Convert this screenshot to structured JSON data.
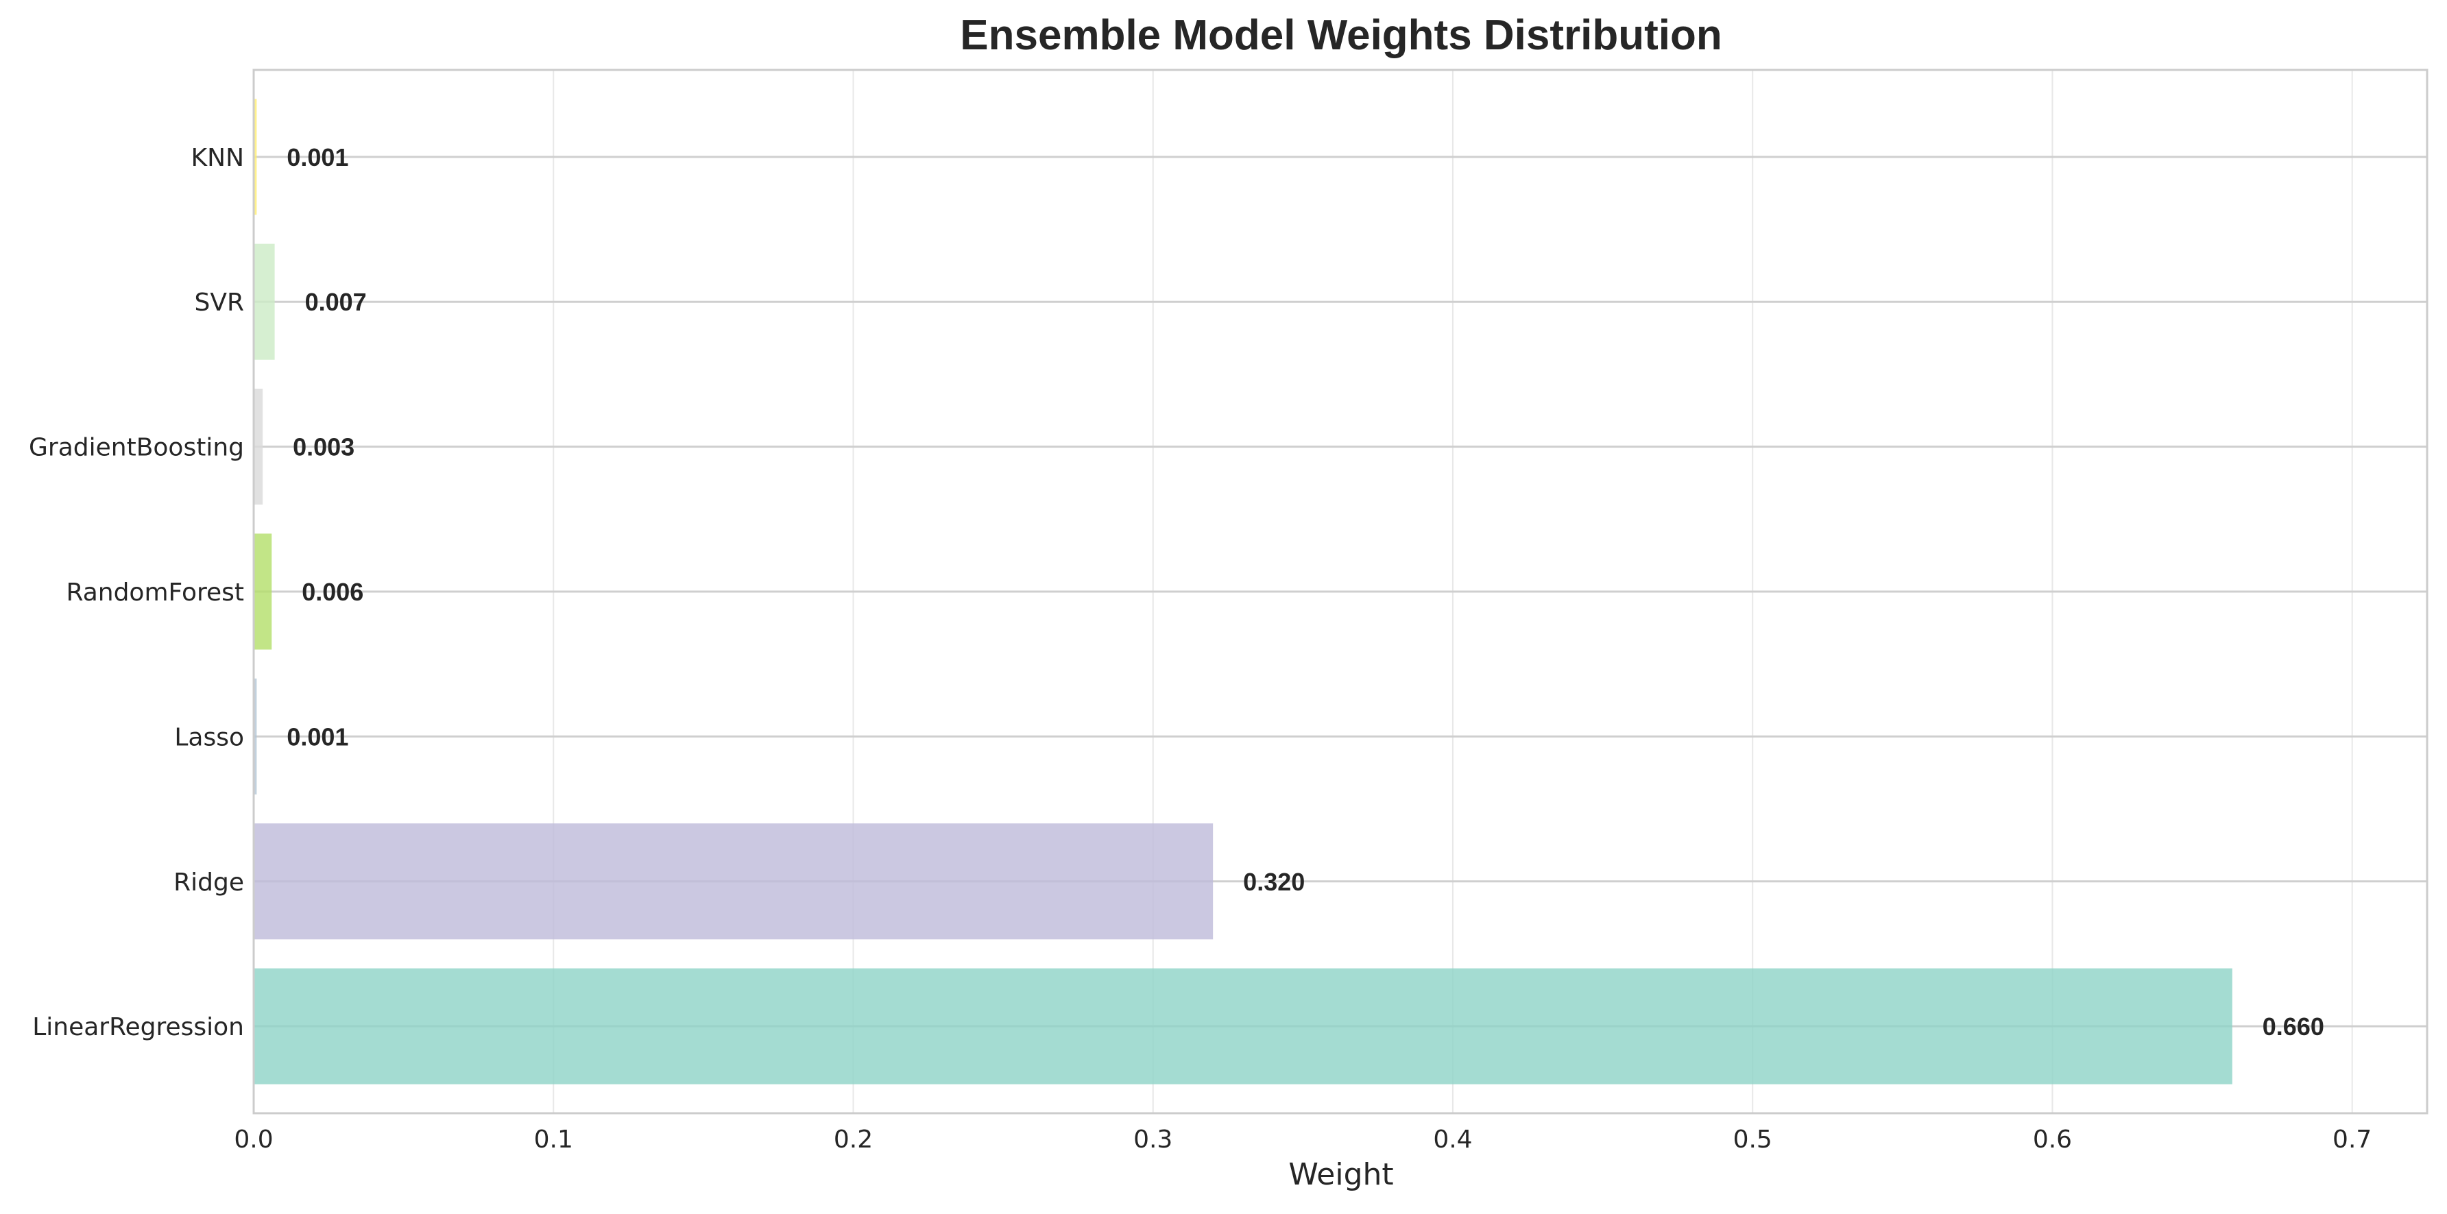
{
  "chart_data": {
    "type": "bar",
    "orientation": "horizontal",
    "title": "Ensemble Model Weights Distribution",
    "xlabel": "Weight",
    "ylabel": "",
    "xlim": [
      0,
      0.725
    ],
    "xticks": [
      "0.0",
      "0.1",
      "0.2",
      "0.3",
      "0.4",
      "0.5",
      "0.6",
      "0.7"
    ],
    "grid": true,
    "categories": [
      "LinearRegression",
      "Ridge",
      "Lasso",
      "RandomForest",
      "GradientBoosting",
      "SVR",
      "KNN"
    ],
    "values": [
      0.66,
      0.32,
      0.001,
      0.006,
      0.003,
      0.007,
      0.001
    ],
    "value_labels": [
      "0.660",
      "0.320",
      "0.001",
      "0.006",
      "0.003",
      "0.007",
      "0.001"
    ],
    "colors": [
      "#8dd3c7",
      "#bebada",
      "#b3c6d6",
      "#b3de69",
      "#d9d9d9",
      "#ccebc5",
      "#ffed6f"
    ]
  }
}
